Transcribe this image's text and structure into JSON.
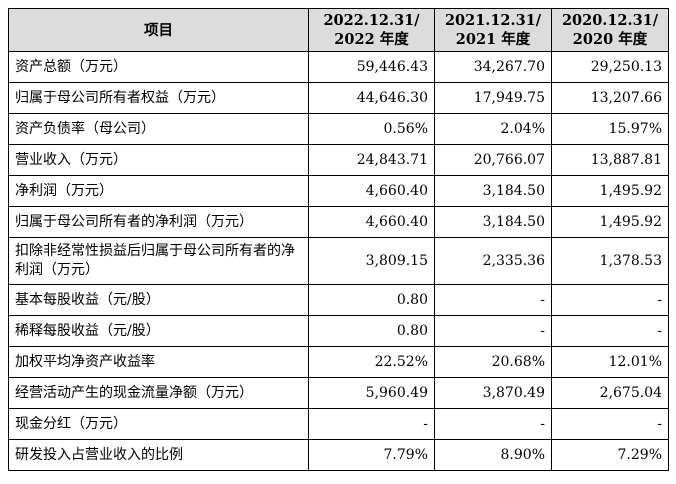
{
  "table": {
    "headers": {
      "item": "项目",
      "periods": [
        {
          "line1": "2022.12.31/",
          "line2": "2022 年度"
        },
        {
          "line1": "2021.12.31/",
          "line2": "2021 年度"
        },
        {
          "line1": "2020.12.31/",
          "line2": "2020 年度"
        }
      ]
    },
    "rows": [
      {
        "label": "资产总额（万元）",
        "values": [
          "59,446.43",
          "34,267.70",
          "29,250.13"
        ]
      },
      {
        "label": "归属于母公司所有者权益（万元）",
        "values": [
          "44,646.30",
          "17,949.75",
          "13,207.66"
        ]
      },
      {
        "label": "资产负债率（母公司）",
        "values": [
          "0.56%",
          "2.04%",
          "15.97%"
        ]
      },
      {
        "label": "营业收入（万元）",
        "values": [
          "24,843.71",
          "20,766.07",
          "13,887.81"
        ]
      },
      {
        "label": "净利润（万元）",
        "values": [
          "4,660.40",
          "3,184.50",
          "1,495.92"
        ]
      },
      {
        "label": "归属于母公司所有者的净利润（万元）",
        "values": [
          "4,660.40",
          "3,184.50",
          "1,495.92"
        ]
      },
      {
        "label": "扣除非经常性损益后归属于母公司所有者的净利润（万元）",
        "values": [
          "3,809.15",
          "2,335.36",
          "1,378.53"
        ]
      },
      {
        "label": "基本每股收益（元/股）",
        "values": [
          "0.80",
          "-",
          "-"
        ]
      },
      {
        "label": "稀释每股收益（元/股）",
        "values": [
          "0.80",
          "-",
          "-"
        ]
      },
      {
        "label": "加权平均净资产收益率",
        "values": [
          "22.52%",
          "20.68%",
          "12.01%"
        ]
      },
      {
        "label": "经营活动产生的现金流量净额（万元）",
        "values": [
          "5,960.49",
          "3,870.49",
          "2,675.04"
        ]
      },
      {
        "label": "现金分红（万元）",
        "values": [
          "-",
          "-",
          "-"
        ]
      },
      {
        "label": "研发投入占营业收入的比例",
        "values": [
          "7.79%",
          "8.90%",
          "7.29%"
        ]
      }
    ]
  }
}
